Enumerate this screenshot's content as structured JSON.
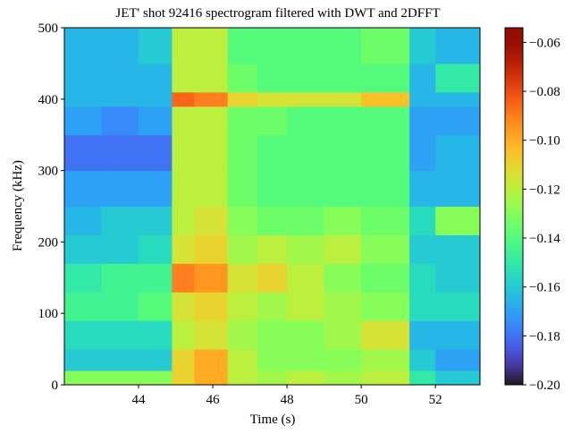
{
  "chart_data": {
    "type": "heatmap",
    "title": "JET' shot 92416 spectrogram filtered with DWT and 2DFFT",
    "x_label": "Time (s)",
    "y_label": "Frequency (kHz)",
    "colormap": "turbo",
    "xbins": [
      42,
      43,
      44,
      44.9,
      45.5,
      46.4,
      47.2,
      48,
      49,
      50,
      51.3,
      52,
      53.2
    ],
    "ybins": [
      0,
      20,
      50,
      90,
      130,
      170,
      210,
      250,
      300,
      350,
      390,
      410,
      450,
      500
    ],
    "z": [
      [
        -0.13,
        -0.13,
        -0.13,
        -0.11,
        -0.1,
        -0.12,
        -0.125,
        -0.12,
        -0.125,
        -0.12,
        -0.15,
        -0.16
      ],
      [
        -0.16,
        -0.16,
        -0.16,
        -0.11,
        -0.1,
        -0.12,
        -0.13,
        -0.13,
        -0.13,
        -0.125,
        -0.16,
        -0.17
      ],
      [
        -0.155,
        -0.155,
        -0.155,
        -0.12,
        -0.115,
        -0.125,
        -0.13,
        -0.13,
        -0.125,
        -0.115,
        -0.165,
        -0.165
      ],
      [
        -0.145,
        -0.145,
        -0.14,
        -0.115,
        -0.11,
        -0.12,
        -0.125,
        -0.12,
        -0.125,
        -0.13,
        -0.155,
        -0.155
      ],
      [
        -0.15,
        -0.145,
        -0.145,
        -0.09,
        -0.095,
        -0.115,
        -0.11,
        -0.12,
        -0.13,
        -0.135,
        -0.155,
        -0.16
      ],
      [
        -0.16,
        -0.16,
        -0.155,
        -0.115,
        -0.11,
        -0.125,
        -0.12,
        -0.125,
        -0.12,
        -0.13,
        -0.16,
        -0.16
      ],
      [
        -0.165,
        -0.16,
        -0.16,
        -0.12,
        -0.115,
        -0.13,
        -0.135,
        -0.135,
        -0.13,
        -0.135,
        -0.155,
        -0.13
      ],
      [
        -0.17,
        -0.17,
        -0.17,
        -0.12,
        -0.12,
        -0.135,
        -0.14,
        -0.14,
        -0.14,
        -0.14,
        -0.165,
        -0.165
      ],
      [
        -0.18,
        -0.18,
        -0.18,
        -0.12,
        -0.12,
        -0.135,
        -0.14,
        -0.14,
        -0.14,
        -0.14,
        -0.17,
        -0.165
      ],
      [
        -0.17,
        -0.175,
        -0.17,
        -0.12,
        -0.12,
        -0.135,
        -0.135,
        -0.14,
        -0.14,
        -0.14,
        -0.17,
        -0.17
      ],
      [
        -0.165,
        -0.165,
        -0.165,
        -0.085,
        -0.09,
        -0.11,
        -0.115,
        -0.115,
        -0.115,
        -0.105,
        -0.165,
        -0.165
      ],
      [
        -0.165,
        -0.165,
        -0.165,
        -0.12,
        -0.12,
        -0.135,
        -0.14,
        -0.14,
        -0.14,
        -0.14,
        -0.165,
        -0.15
      ],
      [
        -0.165,
        -0.165,
        -0.16,
        -0.12,
        -0.12,
        -0.14,
        -0.14,
        -0.14,
        -0.14,
        -0.135,
        -0.16,
        -0.165
      ]
    ],
    "xlim": [
      42,
      53.2
    ],
    "xticks": [
      44,
      46,
      48,
      50,
      52
    ],
    "ylim": [
      0,
      500
    ],
    "yticks": [
      0,
      100,
      200,
      300,
      400,
      500
    ],
    "clim": [
      -0.2,
      -0.054
    ],
    "cticks": [
      {
        "value": -0.06,
        "label": "−0.06"
      },
      {
        "value": -0.08,
        "label": "−0.08"
      },
      {
        "value": -0.1,
        "label": "−0.10"
      },
      {
        "value": -0.12,
        "label": "−0.12"
      },
      {
        "value": -0.14,
        "label": "−0.14"
      },
      {
        "value": -0.16,
        "label": "−0.16"
      },
      {
        "value": -0.18,
        "label": "−0.18"
      },
      {
        "value": -0.2,
        "label": "−0.20"
      }
    ]
  }
}
